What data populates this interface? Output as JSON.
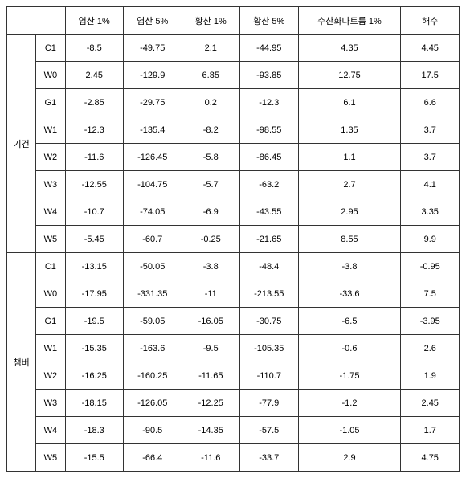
{
  "columns": [
    "염산 1%",
    "염산 5%",
    "황산 1%",
    "황산 5%",
    "수산화나트륨 1%",
    "해수"
  ],
  "groups": [
    {
      "label": "기건",
      "rows": [
        {
          "code": "C1",
          "v": [
            "-8.5",
            "-49.75",
            "2.1",
            "-44.95",
            "4.35",
            "4.45"
          ]
        },
        {
          "code": "W0",
          "v": [
            "2.45",
            "-129.9",
            "6.85",
            "-93.85",
            "12.75",
            "17.5"
          ]
        },
        {
          "code": "G1",
          "v": [
            "-2.85",
            "-29.75",
            "0.2",
            "-12.3",
            "6.1",
            "6.6"
          ]
        },
        {
          "code": "W1",
          "v": [
            "-12.3",
            "-135.4",
            "-8.2",
            "-98.55",
            "1.35",
            "3.7"
          ]
        },
        {
          "code": "W2",
          "v": [
            "-11.6",
            "-126.45",
            "-5.8",
            "-86.45",
            "1.1",
            "3.7"
          ]
        },
        {
          "code": "W3",
          "v": [
            "-12.55",
            "-104.75",
            "-5.7",
            "-63.2",
            "2.7",
            "4.1"
          ]
        },
        {
          "code": "W4",
          "v": [
            "-10.7",
            "-74.05",
            "-6.9",
            "-43.55",
            "2.95",
            "3.35"
          ]
        },
        {
          "code": "W5",
          "v": [
            "-5.45",
            "-60.7",
            "-0.25",
            "-21.65",
            "8.55",
            "9.9"
          ]
        }
      ]
    },
    {
      "label": "챔버",
      "rows": [
        {
          "code": "C1",
          "v": [
            "-13.15",
            "-50.05",
            "-3.8",
            "-48.4",
            "-3.8",
            "-0.95"
          ]
        },
        {
          "code": "W0",
          "v": [
            "-17.95",
            "-331.35",
            "-11",
            "-213.55",
            "-33.6",
            "7.5"
          ]
        },
        {
          "code": "G1",
          "v": [
            "-19.5",
            "-59.05",
            "-16.05",
            "-30.75",
            "-6.5",
            "-3.95"
          ]
        },
        {
          "code": "W1",
          "v": [
            "-15.35",
            "-163.6",
            "-9.5",
            "-105.35",
            "-0.6",
            "2.6"
          ]
        },
        {
          "code": "W2",
          "v": [
            "-16.25",
            "-160.25",
            "-11.65",
            "-110.7",
            "-1.75",
            "1.9"
          ]
        },
        {
          "code": "W3",
          "v": [
            "-18.15",
            "-126.05",
            "-12.25",
            "-77.9",
            "-1.2",
            "2.45"
          ]
        },
        {
          "code": "W4",
          "v": [
            "-18.3",
            "-90.5",
            "-14.35",
            "-57.5",
            "-1.05",
            "1.7"
          ]
        },
        {
          "code": "W5",
          "v": [
            "-15.5",
            "-66.4",
            "-11.6",
            "-33.7",
            "2.9",
            "4.75"
          ]
        }
      ]
    }
  ]
}
